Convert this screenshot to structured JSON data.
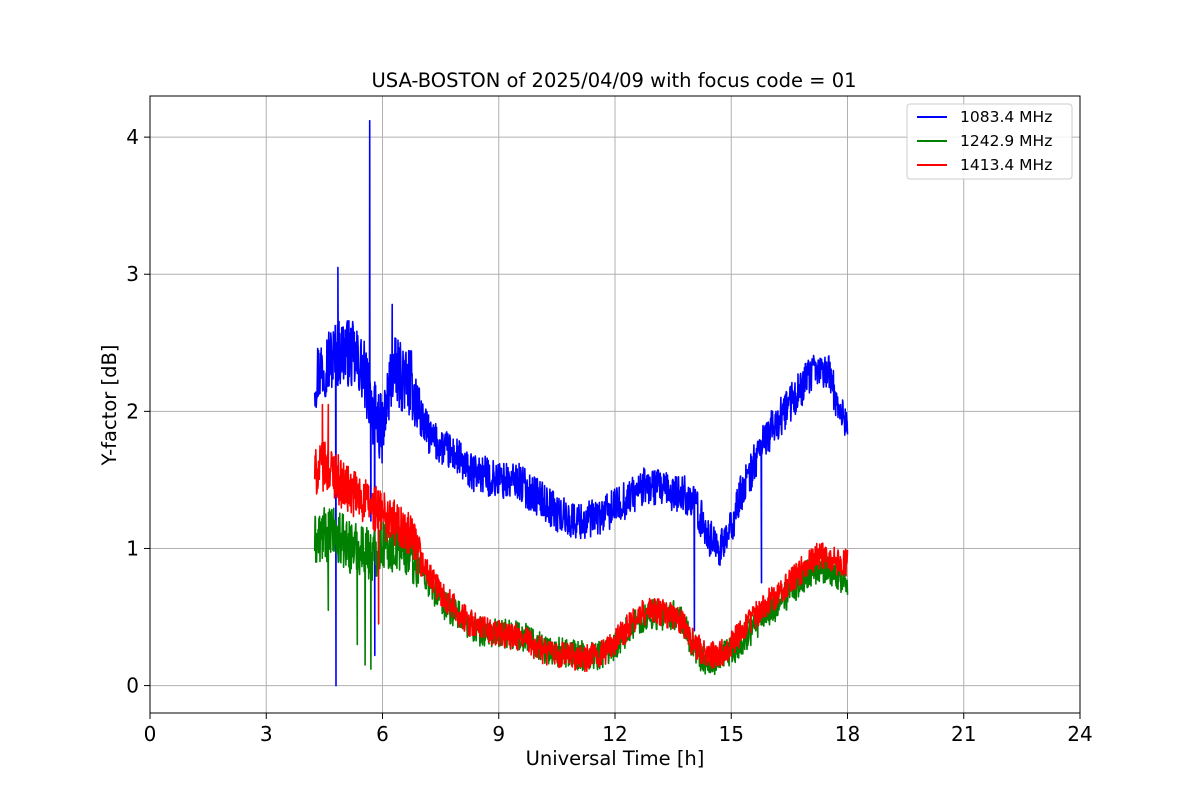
{
  "chart_data": {
    "type": "line",
    "title": "USA-BOSTON of 2025/04/09 with focus code = 01",
    "xlabel": "Universal Time [h]",
    "ylabel": "Y-factor [dB]",
    "xlim": [
      0,
      24
    ],
    "ylim": [
      -0.2,
      4.3
    ],
    "xticks": [
      0,
      3,
      6,
      9,
      12,
      15,
      18,
      21,
      24
    ],
    "yticks": [
      0,
      1,
      2,
      3,
      4
    ],
    "grid": true,
    "legend_position": "top-right",
    "series": [
      {
        "name": "1083.4 MHz",
        "color": "#0000ff",
        "x": [
          4.25,
          4.5,
          4.75,
          5.0,
          5.25,
          5.5,
          5.75,
          6.0,
          6.25,
          6.5,
          6.75,
          7.0,
          7.25,
          7.5,
          7.75,
          8.0,
          8.25,
          8.5,
          8.75,
          9.0,
          9.25,
          9.5,
          9.75,
          10.0,
          10.25,
          10.5,
          10.75,
          11.0,
          11.25,
          11.5,
          11.75,
          12.0,
          12.25,
          12.5,
          12.75,
          13.0,
          13.25,
          13.5,
          13.75,
          14.0,
          14.25,
          14.5,
          14.75,
          15.0,
          15.25,
          15.5,
          15.75,
          16.0,
          16.25,
          16.5,
          16.75,
          17.0,
          17.25,
          17.5,
          17.75,
          18.0
        ],
        "values": [
          2.25,
          2.35,
          2.4,
          2.45,
          2.4,
          2.3,
          2.0,
          1.85,
          2.3,
          2.25,
          2.2,
          1.95,
          1.8,
          1.75,
          1.7,
          1.65,
          1.55,
          1.55,
          1.52,
          1.5,
          1.48,
          1.5,
          1.42,
          1.38,
          1.32,
          1.26,
          1.22,
          1.2,
          1.2,
          1.22,
          1.25,
          1.3,
          1.35,
          1.4,
          1.45,
          1.45,
          1.42,
          1.4,
          1.4,
          1.35,
          1.2,
          1.05,
          1.0,
          1.15,
          1.4,
          1.55,
          1.75,
          1.85,
          1.95,
          2.05,
          2.15,
          2.25,
          2.3,
          2.3,
          2.05,
          1.9
        ],
        "noise": 0.14,
        "spikes": [
          [
            4.8,
            0.0
          ],
          [
            4.85,
            3.05
          ],
          [
            5.67,
            4.12
          ],
          [
            5.7,
            1.2
          ],
          [
            5.8,
            0.22
          ],
          [
            6.25,
            2.78
          ],
          [
            14.05,
            0.4
          ],
          [
            15.78,
            0.75
          ]
        ]
      },
      {
        "name": "1242.9 MHz",
        "color": "#008000",
        "x": [
          4.25,
          4.5,
          4.75,
          5.0,
          5.25,
          5.5,
          5.75,
          6.0,
          6.25,
          6.5,
          6.75,
          7.0,
          7.25,
          7.5,
          7.75,
          8.0,
          8.25,
          8.5,
          8.75,
          9.0,
          9.25,
          9.5,
          9.75,
          10.0,
          10.25,
          10.5,
          10.75,
          11.0,
          11.25,
          11.5,
          11.75,
          12.0,
          12.25,
          12.5,
          12.75,
          13.0,
          13.25,
          13.5,
          13.75,
          14.0,
          14.25,
          14.5,
          14.75,
          15.0,
          15.25,
          15.5,
          15.75,
          16.0,
          16.25,
          16.5,
          16.75,
          17.0,
          17.25,
          17.5,
          17.75,
          18.0
        ],
        "values": [
          1.05,
          1.1,
          1.1,
          1.05,
          1.0,
          1.0,
          0.95,
          1.05,
          1.0,
          1.05,
          0.95,
          0.85,
          0.72,
          0.62,
          0.55,
          0.5,
          0.45,
          0.4,
          0.38,
          0.38,
          0.38,
          0.37,
          0.35,
          0.3,
          0.26,
          0.25,
          0.23,
          0.22,
          0.22,
          0.22,
          0.25,
          0.3,
          0.38,
          0.45,
          0.5,
          0.52,
          0.5,
          0.52,
          0.45,
          0.3,
          0.2,
          0.18,
          0.2,
          0.25,
          0.32,
          0.4,
          0.48,
          0.55,
          0.6,
          0.68,
          0.75,
          0.82,
          0.85,
          0.85,
          0.8,
          0.75
        ],
        "noise": 0.11,
        "spikes": [
          [
            4.6,
            0.55
          ],
          [
            5.35,
            0.3
          ],
          [
            5.55,
            0.15
          ],
          [
            5.7,
            0.12
          ],
          [
            6.55,
            0.95
          ]
        ]
      },
      {
        "name": "1413.4 MHz",
        "color": "#ff0000",
        "x": [
          4.25,
          4.5,
          4.75,
          5.0,
          5.25,
          5.5,
          5.75,
          6.0,
          6.25,
          6.5,
          6.75,
          7.0,
          7.25,
          7.5,
          7.75,
          8.0,
          8.25,
          8.5,
          8.75,
          9.0,
          9.25,
          9.5,
          9.75,
          10.0,
          10.25,
          10.5,
          10.75,
          11.0,
          11.25,
          11.5,
          11.75,
          12.0,
          12.25,
          12.5,
          12.75,
          13.0,
          13.25,
          13.5,
          13.75,
          14.0,
          14.25,
          14.5,
          14.75,
          15.0,
          15.25,
          15.5,
          15.75,
          16.0,
          16.25,
          16.5,
          16.75,
          17.0,
          17.25,
          17.5,
          17.75,
          18.0
        ],
        "values": [
          1.55,
          1.6,
          1.55,
          1.45,
          1.4,
          1.35,
          1.3,
          1.25,
          1.2,
          1.15,
          1.05,
          0.9,
          0.78,
          0.68,
          0.6,
          0.52,
          0.46,
          0.42,
          0.4,
          0.38,
          0.36,
          0.35,
          0.32,
          0.28,
          0.24,
          0.22,
          0.22,
          0.2,
          0.2,
          0.22,
          0.25,
          0.32,
          0.4,
          0.48,
          0.53,
          0.55,
          0.53,
          0.5,
          0.45,
          0.32,
          0.25,
          0.22,
          0.24,
          0.3,
          0.38,
          0.48,
          0.55,
          0.62,
          0.68,
          0.75,
          0.82,
          0.9,
          0.95,
          0.95,
          0.9,
          0.9
        ],
        "noise": 0.1,
        "spikes": [
          [
            4.45,
            2.05
          ],
          [
            4.6,
            2.05
          ],
          [
            5.9,
            0.45
          ]
        ]
      }
    ]
  }
}
